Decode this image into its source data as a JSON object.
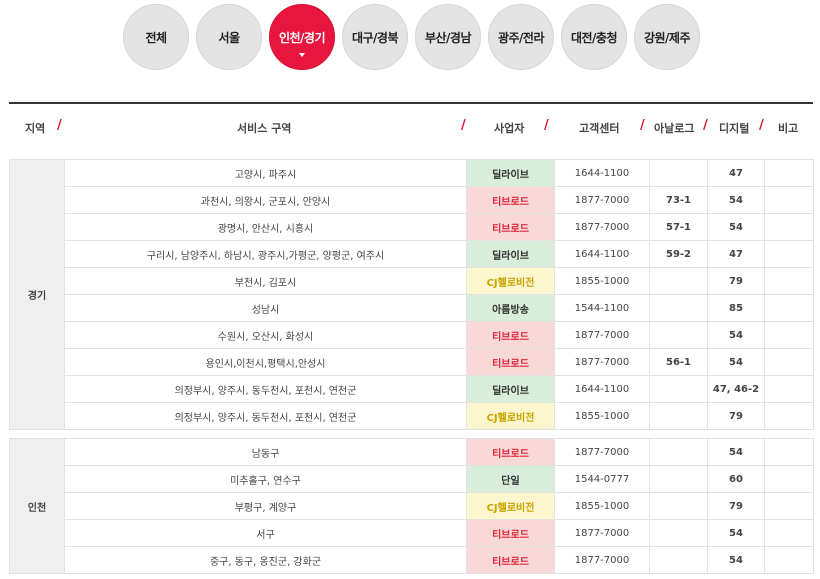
{
  "tabs": [
    {
      "label": "전체",
      "active": false
    },
    {
      "label": "서울",
      "active": false
    },
    {
      "label": "인천/경기",
      "active": true
    },
    {
      "label": "대구/경북",
      "active": false
    },
    {
      "label": "부산/경남",
      "active": false
    },
    {
      "label": "광주/전라",
      "active": false
    },
    {
      "label": "대전/충청",
      "active": false
    },
    {
      "label": "강원/제주",
      "active": false
    }
  ],
  "header": {
    "region": "지역",
    "area": "서비스 구역",
    "provider": "사업자",
    "center": "고객센터",
    "analog": "아날로그",
    "digital": "디지털",
    "note": "비고"
  },
  "groups": [
    {
      "region": "경기",
      "rows": [
        {
          "area": "고양시, 파주시",
          "provider": "딜라이브",
          "color": "green",
          "tel": "1644-1100",
          "analog": "",
          "digital": "47"
        },
        {
          "area": "과천시, 의왕시, 군포시, 안양시",
          "provider": "티브로드",
          "color": "red",
          "tel": "1877-7000",
          "analog": "73-1",
          "digital": "54"
        },
        {
          "area": "광명시, 안산시, 시흥시",
          "provider": "티브로드",
          "color": "red",
          "tel": "1877-7000",
          "analog": "57-1",
          "digital": "54"
        },
        {
          "area": "구리시, 남양주시, 하남시, 광주시,가평군, 양평군, 여주시",
          "provider": "딜라이브",
          "color": "green",
          "tel": "1644-1100",
          "analog": "59-2",
          "digital": "47"
        },
        {
          "area": "부천시, 김포시",
          "provider": "CJ헬로비전",
          "color": "yellow",
          "tel": "1855-1000",
          "analog": "",
          "digital": "79"
        },
        {
          "area": "성남시",
          "provider": "아름방송",
          "color": "green",
          "tel": "1544-1100",
          "analog": "",
          "digital": "85"
        },
        {
          "area": "수원시, 오산시, 화성시",
          "provider": "티브로드",
          "color": "red",
          "tel": "1877-7000",
          "analog": "",
          "digital": "54"
        },
        {
          "area": "용인시,이천시,평택시,안성시",
          "provider": "티브로드",
          "color": "red",
          "tel": "1877-7000",
          "analog": "56-1",
          "digital": "54"
        },
        {
          "area": "의정부시, 양주시, 동두천시, 포천시, 연천군",
          "provider": "딜라이브",
          "color": "green",
          "tel": "1644-1100",
          "analog": "",
          "digital": "47, 46-2"
        },
        {
          "area": "의정부시, 양주시, 동두천시, 포천시, 연천군",
          "provider": "CJ헬로비전",
          "color": "yellow",
          "tel": "1855-1000",
          "analog": "",
          "digital": "79"
        }
      ]
    },
    {
      "region": "인천",
      "rows": [
        {
          "area": "남동구",
          "provider": "티브로드",
          "color": "red",
          "tel": "1877-7000",
          "analog": "",
          "digital": "54"
        },
        {
          "area": "미추홀구, 연수구",
          "provider": "단일",
          "color": "green",
          "tel": "1544-0777",
          "analog": "",
          "digital": "60"
        },
        {
          "area": "부평구, 계양구",
          "provider": "CJ헬로비전",
          "color": "yellow",
          "tel": "1855-1000",
          "analog": "",
          "digital": "79"
        },
        {
          "area": "서구",
          "provider": "티브로드",
          "color": "red",
          "tel": "1877-7000",
          "analog": "",
          "digital": "54"
        },
        {
          "area": "중구, 동구, 옹진군, 강화군",
          "provider": "티브로드",
          "color": "red",
          "tel": "1877-7000",
          "analog": "",
          "digital": "54"
        }
      ]
    }
  ]
}
